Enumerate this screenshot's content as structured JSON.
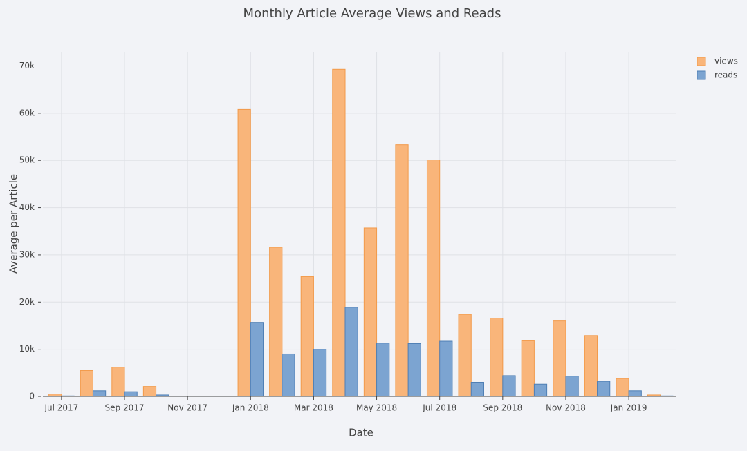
{
  "chart_data": {
    "type": "bar",
    "title": "Monthly Article Average Views and Reads",
    "x_label": "Date",
    "y_label": "Average per Article",
    "categories": [
      "Jul 2017",
      null,
      "Sep 2017",
      null,
      "Nov 2017",
      null,
      "Jan 2018",
      null,
      "Mar 2018",
      null,
      "May 2018",
      null,
      "Jul 2018",
      null,
      "Sep 2018",
      null,
      "Nov 2018",
      null,
      "Jan 2019",
      null
    ],
    "series": [
      {
        "name": "views",
        "color": "#f9b57a",
        "values": [
          500,
          5500,
          6200,
          2100,
          null,
          null,
          60800,
          31600,
          25400,
          69300,
          35700,
          53300,
          50100,
          17400,
          16600,
          11800,
          16000,
          12900,
          3800,
          300
        ]
      },
      {
        "name": "reads",
        "color": "#7ca4d1",
        "values": [
          100,
          1200,
          1000,
          300,
          null,
          null,
          15700,
          9000,
          10000,
          18900,
          11300,
          11200,
          11700,
          3000,
          4400,
          2600,
          4300,
          3200,
          1200,
          100
        ]
      }
    ],
    "ylim": [
      0,
      73000
    ],
    "yticks": [
      0,
      {
        "value": 10000,
        "label": "10k"
      },
      {
        "value": 20000,
        "label": "20k"
      },
      {
        "value": 30000,
        "label": "30k"
      },
      {
        "value": 40000,
        "label": "40k"
      },
      {
        "value": 50000,
        "label": "50k"
      },
      {
        "value": 60000,
        "label": "60k"
      },
      {
        "value": 70000,
        "label": "70k"
      }
    ],
    "grid": true,
    "legend": "top-right"
  }
}
